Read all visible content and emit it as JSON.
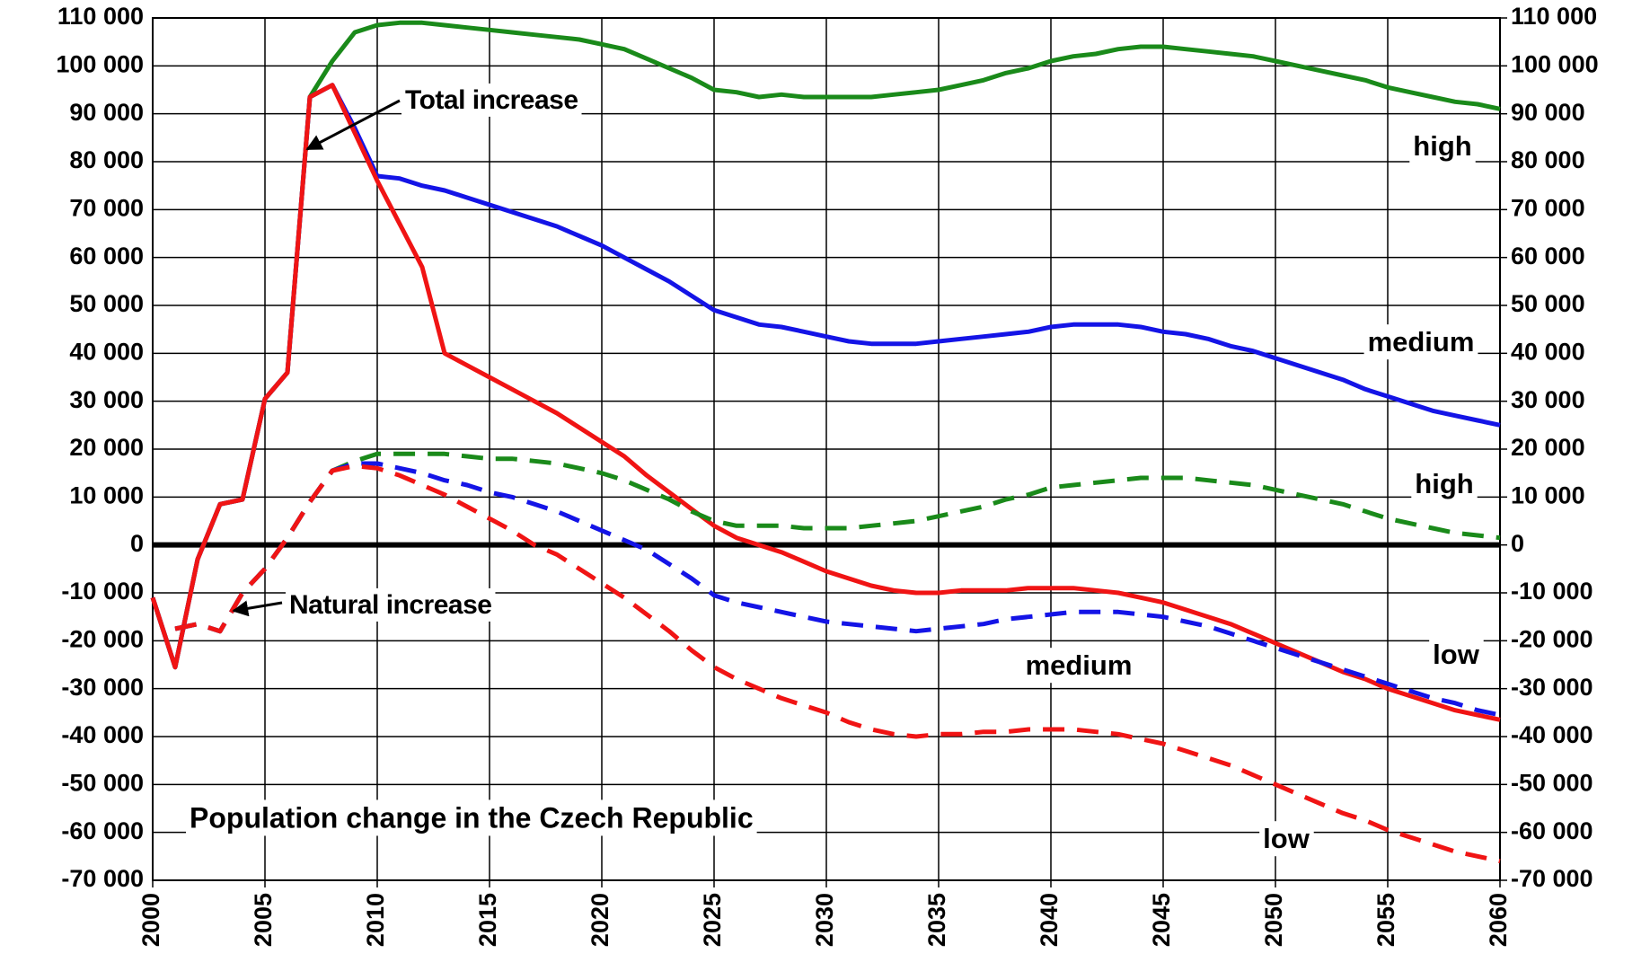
{
  "chart_data": {
    "type": "line",
    "title": "Population change in the Czech Republic",
    "annotations": [
      "Total increase",
      "Natural increase"
    ],
    "x": [
      2000,
      2001,
      2002,
      2003,
      2004,
      2005,
      2006,
      2007,
      2008,
      2009,
      2010,
      2011,
      2012,
      2013,
      2014,
      2015,
      2016,
      2017,
      2018,
      2019,
      2020,
      2021,
      2022,
      2023,
      2024,
      2025,
      2026,
      2027,
      2028,
      2029,
      2030,
      2031,
      2032,
      2033,
      2034,
      2035,
      2036,
      2037,
      2038,
      2039,
      2040,
      2041,
      2042,
      2043,
      2044,
      2045,
      2046,
      2047,
      2048,
      2049,
      2050,
      2051,
      2052,
      2053,
      2054,
      2055,
      2056,
      2057,
      2058,
      2059,
      2060
    ],
    "xlim": [
      2000,
      2060
    ],
    "xticks": [
      2000,
      2005,
      2010,
      2015,
      2020,
      2025,
      2030,
      2035,
      2040,
      2045,
      2050,
      2055,
      2060
    ],
    "ylim": [
      -70000,
      110000
    ],
    "yticks": [
      {
        "value": -70000,
        "label": "-70 000"
      },
      {
        "value": -60000,
        "label": "-60 000"
      },
      {
        "value": -50000,
        "label": "-50 000"
      },
      {
        "value": -40000,
        "label": "-40 000"
      },
      {
        "value": -30000,
        "label": "-30 000"
      },
      {
        "value": -20000,
        "label": "-20 000"
      },
      {
        "value": -10000,
        "label": "-10 000"
      },
      0,
      {
        "value": 10000,
        "label": "10 000"
      },
      {
        "value": 20000,
        "label": "20 000"
      },
      {
        "value": 30000,
        "label": "30 000"
      },
      {
        "value": 40000,
        "label": "40 000"
      },
      {
        "value": 50000,
        "label": "50 000"
      },
      {
        "value": 60000,
        "label": "60 000"
      },
      {
        "value": 70000,
        "label": "70 000"
      },
      {
        "value": 80000,
        "label": "80 000"
      },
      {
        "value": 90000,
        "label": "90 000"
      },
      {
        "value": 100000,
        "label": "100 000"
      },
      {
        "value": 110000,
        "label": "110 000"
      }
    ],
    "y2lim": [
      -70000,
      110000
    ],
    "y2ticks": [
      {
        "value": -70000,
        "label": "-70 000"
      },
      {
        "value": -60000,
        "label": "-60 000"
      },
      {
        "value": -50000,
        "label": "-50 000"
      },
      {
        "value": -40000,
        "label": "-40 000"
      },
      {
        "value": -30000,
        "label": "-30 000"
      },
      {
        "value": -20000,
        "label": "-20 000"
      },
      {
        "value": -10000,
        "label": "-10 000"
      },
      0,
      {
        "value": 10000,
        "label": "10 000"
      },
      {
        "value": 20000,
        "label": "20 000"
      },
      {
        "value": 30000,
        "label": "30 000"
      },
      {
        "value": 40000,
        "label": "40 000"
      },
      {
        "value": 50000,
        "label": "50 000"
      },
      {
        "value": 60000,
        "label": "60 000"
      },
      {
        "value": 70000,
        "label": "70 000"
      },
      {
        "value": 80000,
        "label": "80 000"
      },
      {
        "value": 90000,
        "label": "90 000"
      },
      {
        "value": 100000,
        "label": "100 000"
      },
      {
        "value": 110000,
        "label": "110 000"
      }
    ],
    "grid": true,
    "series": [
      {
        "name": "high",
        "color": "#1a8a1a",
        "style": "solid",
        "values": [
          -11000,
          -25500,
          -3000,
          8500,
          9500,
          30500,
          36000,
          93500,
          101000,
          107000,
          108500,
          109000,
          109000,
          108500,
          108000,
          107500,
          107000,
          106500,
          106000,
          105500,
          104500,
          103500,
          101500,
          99500,
          97500,
          95000,
          94500,
          93500,
          94000,
          93500,
          93500,
          93500,
          93500,
          94000,
          94500,
          95000,
          96000,
          97000,
          98500,
          99500,
          101000,
          102000,
          102500,
          103500,
          104000,
          104000,
          103500,
          103000,
          102500,
          102000,
          101000,
          100000,
          99000,
          98000,
          97000,
          95500,
          94500,
          93500,
          92500,
          92000,
          91000
        ]
      },
      {
        "name": "medium",
        "color": "#1414e6",
        "style": "solid",
        "values": [
          -11000,
          -25500,
          -3000,
          8500,
          9500,
          30500,
          36000,
          93500,
          96000,
          87000,
          77000,
          76500,
          75000,
          74000,
          72500,
          71000,
          69500,
          68000,
          66500,
          64500,
          62500,
          60000,
          57500,
          55000,
          52000,
          49000,
          47500,
          46000,
          45500,
          44500,
          43500,
          42500,
          42000,
          42000,
          42000,
          42500,
          43000,
          43500,
          44000,
          44500,
          45500,
          46000,
          46000,
          46000,
          45500,
          44500,
          44000,
          43000,
          41500,
          40500,
          39000,
          37500,
          36000,
          34500,
          32500,
          31000,
          29500,
          28000,
          27000,
          26000,
          25000
        ]
      },
      {
        "name": "low",
        "color": "#f01414",
        "style": "solid",
        "values": [
          -11000,
          -25500,
          -3000,
          8500,
          9500,
          30500,
          36000,
          93500,
          96000,
          86000,
          76000,
          67000,
          58000,
          40000,
          37500,
          35000,
          32500,
          30000,
          27500,
          24500,
          21500,
          18500,
          14500,
          11000,
          7500,
          4000,
          1500,
          0,
          -1500,
          -3500,
          -5500,
          -7000,
          -8500,
          -9500,
          -10000,
          -10000,
          -9500,
          -9500,
          -9500,
          -9000,
          -9000,
          -9000,
          -9500,
          -10000,
          -11000,
          -12000,
          -13500,
          -15000,
          -16500,
          -18500,
          -20500,
          -22500,
          -24500,
          -26500,
          -28000,
          -30000,
          -31500,
          -33000,
          -34500,
          -35500,
          -36500
        ]
      },
      {
        "name": "high",
        "color": "#1a8a1a",
        "style": "dashed",
        "values": [
          null,
          -17500,
          -16500,
          -18000,
          -10000,
          -5000,
          1500,
          9000,
          15500,
          17500,
          19000,
          19000,
          19000,
          19000,
          18500,
          18000,
          18000,
          17500,
          17000,
          16000,
          15000,
          13500,
          11500,
          9500,
          7000,
          5000,
          4000,
          4000,
          4000,
          3500,
          3500,
          3500,
          4000,
          4500,
          5000,
          6000,
          7000,
          8000,
          9500,
          10500,
          12000,
          12500,
          13000,
          13500,
          14000,
          14000,
          14000,
          13500,
          13000,
          12500,
          11500,
          10500,
          9500,
          8500,
          7000,
          5500,
          4500,
          3500,
          2500,
          2000,
          1500
        ]
      },
      {
        "name": "medium",
        "color": "#1414e6",
        "style": "dashed",
        "values": [
          null,
          -17500,
          -16500,
          -18000,
          -10000,
          -5000,
          1500,
          9000,
          15500,
          17000,
          17000,
          16000,
          15000,
          13500,
          12500,
          11000,
          10000,
          8500,
          7000,
          5000,
          3000,
          1000,
          -1000,
          -4000,
          -7000,
          -10500,
          -12000,
          -13000,
          -14000,
          -15000,
          -16000,
          -16500,
          -17000,
          -17500,
          -18000,
          -17500,
          -17000,
          -16500,
          -15500,
          -15000,
          -14500,
          -14000,
          -14000,
          -14000,
          -14500,
          -15000,
          -16000,
          -17000,
          -18500,
          -20000,
          -21500,
          -23000,
          -24500,
          -26000,
          -27500,
          -29000,
          -30500,
          -32000,
          -33000,
          -34500,
          -35500
        ]
      },
      {
        "name": "low",
        "color": "#f01414",
        "style": "dashed",
        "values": [
          null,
          -17500,
          -16500,
          -18000,
          -10000,
          -5000,
          1500,
          9000,
          15500,
          16500,
          16000,
          14500,
          12500,
          10500,
          8000,
          5500,
          3000,
          0,
          -2000,
          -5000,
          -8000,
          -11000,
          -14500,
          -18000,
          -22000,
          -25500,
          -28000,
          -30000,
          -32000,
          -33500,
          -35000,
          -37000,
          -38500,
          -39500,
          -40000,
          -39500,
          -39500,
          -39000,
          -39000,
          -38500,
          -38500,
          -38500,
          -39000,
          -39500,
          -40500,
          -41500,
          -43000,
          -44500,
          -46000,
          -48000,
          -50000,
          -52000,
          -54000,
          -56000,
          -57500,
          -59500,
          -61000,
          -62500,
          -64000,
          -65000,
          -66000
        ]
      }
    ]
  }
}
